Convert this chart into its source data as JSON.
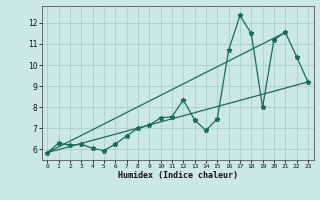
{
  "xlabel": "Humidex (Indice chaleur)",
  "ylabel": "",
  "bg_color": "#cce8e4",
  "grid_color": "#aad4cf",
  "line_color": "#1a6b5e",
  "xlim": [
    -0.5,
    23.5
  ],
  "ylim": [
    5.5,
    12.8
  ],
  "yticks": [
    6,
    7,
    8,
    9,
    10,
    11,
    12
  ],
  "xticks": [
    0,
    1,
    2,
    3,
    4,
    5,
    6,
    7,
    8,
    9,
    10,
    11,
    12,
    13,
    14,
    15,
    16,
    17,
    18,
    19,
    20,
    21,
    22,
    23
  ],
  "main_x": [
    0,
    1,
    2,
    3,
    4,
    5,
    6,
    7,
    8,
    9,
    10,
    11,
    12,
    13,
    14,
    15,
    16,
    17,
    18,
    19,
    20,
    21,
    22,
    23
  ],
  "main_y": [
    5.85,
    6.3,
    6.2,
    6.25,
    6.05,
    5.95,
    6.25,
    6.65,
    7.0,
    7.15,
    7.5,
    7.55,
    8.35,
    7.4,
    6.9,
    7.45,
    10.7,
    12.35,
    11.5,
    8.0,
    11.2,
    11.55,
    10.4,
    9.2
  ],
  "line2_x": [
    0,
    23
  ],
  "line2_y": [
    5.85,
    9.2
  ],
  "line3_x": [
    0,
    21
  ],
  "line3_y": [
    5.85,
    11.55
  ]
}
